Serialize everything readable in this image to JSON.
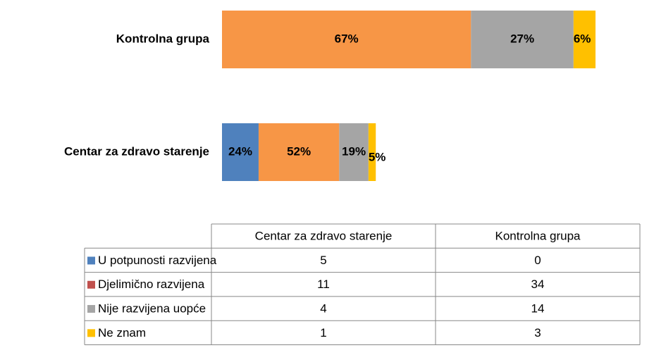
{
  "chart_data": {
    "type": "stacked_bar_horizontal",
    "categories": [
      "Centar za zdravo starenje",
      "Kontrolna grupa"
    ],
    "series": [
      {
        "name": "U potpunosti razvijena",
        "color": "#4f81bd",
        "legend_color": "#4f81bd",
        "values": [
          5,
          0
        ],
        "value_labels": [
          "24%",
          null
        ]
      },
      {
        "name": "Djelimično razvijena",
        "color": "#f79646",
        "legend_color": "#c0504d",
        "values": [
          11,
          34
        ],
        "value_labels": [
          "52%",
          "67%"
        ]
      },
      {
        "name": "Nije razvijena uopće",
        "color": "#a5a5a5",
        "legend_color": "#a5a5a5",
        "values": [
          4,
          14
        ],
        "value_labels": [
          "19%",
          "27%"
        ]
      },
      {
        "name": "Ne znam",
        "color": "#ffc000",
        "legend_color": "#ffc000",
        "values": [
          1,
          3
        ],
        "value_labels": [
          "5%",
          "6%"
        ]
      }
    ],
    "data_table": true
  }
}
